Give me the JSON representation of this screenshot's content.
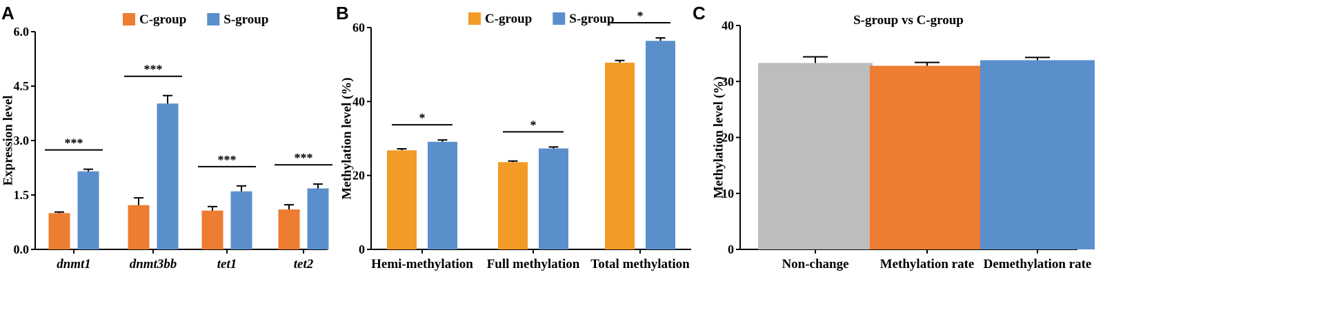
{
  "chart_data": [
    {
      "panel": "A",
      "type": "bar",
      "title": "",
      "xlabel": "",
      "ylabel": "Expression level",
      "ylim": [
        0,
        6.0
      ],
      "yticks": [
        "0.0",
        "1.5",
        "3.0",
        "4.5",
        "6.0"
      ],
      "categories": [
        "dnmt1",
        "dnmt3bb",
        "tet1",
        "tet2"
      ],
      "category_style": "italic",
      "series": [
        {
          "name": "C-group",
          "color": "#ed7d31",
          "values": [
            1.0,
            1.22,
            1.07,
            1.1
          ],
          "errors": [
            0.03,
            0.2,
            0.11,
            0.13
          ]
        },
        {
          "name": "S-group",
          "color": "#5b8fcc",
          "values": [
            2.15,
            4.02,
            1.6,
            1.68
          ],
          "errors": [
            0.06,
            0.22,
            0.15,
            0.12
          ]
        }
      ],
      "significance": [
        "***",
        "***",
        "***",
        "***"
      ],
      "legend": "top"
    },
    {
      "panel": "B",
      "type": "bar",
      "title": "",
      "xlabel": "",
      "ylabel": "Methylation level (%)",
      "ylim": [
        0,
        60
      ],
      "yticks": [
        "0",
        "20",
        "40",
        "60"
      ],
      "categories": [
        "Hemi-methylation",
        "Full methylation",
        "Total methylation"
      ],
      "category_style": "normal",
      "series": [
        {
          "name": "C-group",
          "color": "#f29b26",
          "values": [
            26.8,
            23.6,
            50.5
          ],
          "errors": [
            0.4,
            0.3,
            0.6
          ]
        },
        {
          "name": "S-group",
          "color": "#5b8fcc",
          "values": [
            29.1,
            27.3,
            56.4
          ],
          "errors": [
            0.5,
            0.4,
            0.8
          ]
        }
      ],
      "significance": [
        "*",
        "*",
        "*"
      ],
      "legend": "top"
    },
    {
      "panel": "C",
      "type": "bar",
      "title": "S-group vs C-group",
      "xlabel": "",
      "ylabel": "Methylation level (%)",
      "ylim": [
        0,
        40
      ],
      "yticks": [
        "0",
        "10",
        "20",
        "30",
        "40"
      ],
      "categories": [
        "Non-change",
        "Methylation rate",
        "Demethylation rate"
      ],
      "category_style": "normal",
      "values": [
        33.3,
        32.8,
        33.8
      ],
      "errors": [
        1.1,
        0.6,
        0.5
      ],
      "colors": [
        "#bdbdbd",
        "#ed7d31",
        "#5b8fcc"
      ]
    }
  ]
}
